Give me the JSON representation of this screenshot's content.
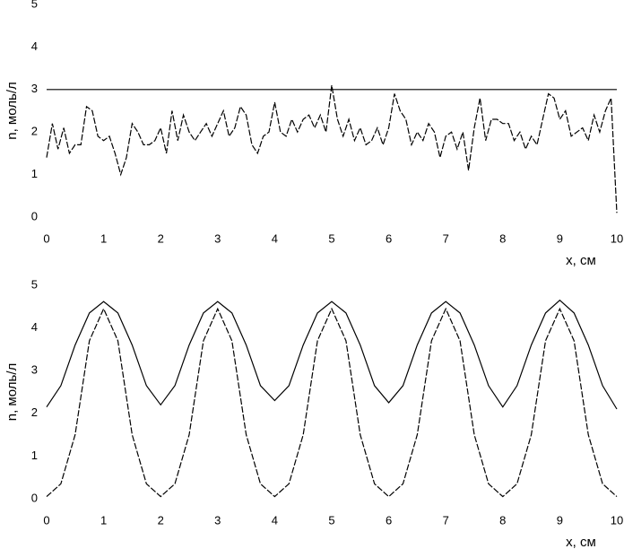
{
  "chart_data": [
    {
      "type": "line",
      "xlabel": "x, см",
      "ylabel": "n, моль/л",
      "xlim": [
        0,
        10
      ],
      "ylim": [
        0,
        5
      ],
      "xticks": [
        0,
        1,
        2,
        3,
        4,
        5,
        6,
        7,
        8,
        9,
        10
      ],
      "yticks": [
        0,
        1,
        2,
        3,
        4,
        5
      ],
      "series": [
        {
          "color": "#000000",
          "dashed": true,
          "x": [
            0,
            0.1,
            0.2,
            0.3,
            0.4,
            0.5,
            0.6,
            0.7,
            0.8,
            0.9,
            1,
            1.1,
            1.2,
            1.3,
            1.4,
            1.5,
            1.6,
            1.7,
            1.8,
            1.9,
            2,
            2.1,
            2.2,
            2.3,
            2.4,
            2.5,
            2.6,
            2.7,
            2.8,
            2.9,
            3,
            3.1,
            3.2,
            3.3,
            3.4,
            3.5,
            3.6,
            3.7,
            3.8,
            3.9,
            4,
            4.1,
            4.2,
            4.3,
            4.4,
            4.5,
            4.6,
            4.7,
            4.8,
            4.9,
            5,
            5.1,
            5.2,
            5.3,
            5.4,
            5.5,
            5.6,
            5.7,
            5.8,
            5.9,
            6,
            6.1,
            6.2,
            6.3,
            6.4,
            6.5,
            6.6,
            6.7,
            6.8,
            6.9,
            7,
            7.1,
            7.2,
            7.3,
            7.4,
            7.5,
            7.6,
            7.7,
            7.8,
            7.9,
            8,
            8.1,
            8.2,
            8.3,
            8.4,
            8.5,
            8.6,
            8.7,
            8.8,
            8.9,
            9,
            9.1,
            9.2,
            9.3,
            9.4,
            9.5,
            9.6,
            9.7,
            9.8,
            9.9,
            10
          ],
          "values": [
            1.4,
            2.2,
            1.6,
            2.1,
            1.5,
            1.7,
            1.7,
            2.6,
            2.5,
            1.9,
            1.8,
            1.9,
            1.5,
            1.0,
            1.4,
            2.2,
            2.0,
            1.7,
            1.7,
            1.8,
            2.1,
            1.5,
            2.5,
            1.8,
            2.4,
            2.0,
            1.8,
            2.0,
            2.2,
            1.9,
            2.2,
            2.5,
            1.9,
            2.1,
            2.6,
            2.4,
            1.7,
            1.5,
            1.9,
            2.0,
            2.7,
            2.0,
            1.9,
            2.3,
            2.0,
            2.3,
            2.4,
            2.1,
            2.4,
            2.0,
            3.1,
            2.3,
            1.9,
            2.3,
            1.8,
            2.1,
            1.7,
            1.8,
            2.1,
            1.7,
            2.1,
            2.9,
            2.5,
            2.3,
            1.7,
            2.0,
            1.8,
            2.2,
            2.0,
            1.4,
            1.9,
            2.0,
            1.6,
            2.0,
            1.1,
            2.1,
            2.8,
            1.8,
            2.3,
            2.3,
            2.2,
            2.2,
            1.8,
            2.0,
            1.6,
            1.9,
            1.7,
            2.3,
            2.9,
            2.8,
            2.3,
            2.5,
            1.9,
            2.0,
            2.1,
            1.8,
            2.4,
            2.0,
            2.5,
            2.8,
            0.1
          ]
        },
        {
          "color": "#000000",
          "dashed": false,
          "x": [
            0,
            10
          ],
          "values": [
            3,
            3
          ]
        }
      ]
    },
    {
      "type": "line",
      "xlabel": "x, см",
      "ylabel": "n, моль/л",
      "xlim": [
        0,
        10
      ],
      "ylim": [
        0,
        5
      ],
      "xticks": [
        0,
        1,
        2,
        3,
        4,
        5,
        6,
        7,
        8,
        9,
        10
      ],
      "yticks": [
        0,
        1,
        2,
        3,
        4,
        5
      ],
      "series": [
        {
          "color": "#000000",
          "dashed": false,
          "x": [
            0,
            0.25,
            0.5,
            0.75,
            1,
            1.25,
            1.5,
            1.75,
            2,
            2.25,
            2.5,
            2.75,
            3,
            3.25,
            3.5,
            3.75,
            4,
            4.25,
            4.5,
            4.75,
            5,
            5.25,
            5.5,
            5.75,
            6,
            6.25,
            6.5,
            6.75,
            7,
            7.25,
            7.5,
            7.75,
            8,
            8.25,
            8.5,
            8.75,
            9,
            9.25,
            9.5,
            9.75,
            10
          ],
          "values": [
            2.15,
            2.65,
            3.6,
            4.35,
            4.62,
            4.35,
            3.6,
            2.65,
            2.2,
            2.65,
            3.6,
            4.35,
            4.62,
            4.35,
            3.6,
            2.65,
            2.3,
            2.65,
            3.6,
            4.35,
            4.62,
            4.35,
            3.6,
            2.65,
            2.25,
            2.65,
            3.6,
            4.35,
            4.62,
            4.35,
            3.6,
            2.65,
            2.15,
            2.65,
            3.6,
            4.35,
            4.65,
            4.35,
            3.6,
            2.65,
            2.1
          ]
        },
        {
          "color": "#000000",
          "dashed": true,
          "x": [
            0,
            0.25,
            0.5,
            0.75,
            1,
            1.25,
            1.5,
            1.75,
            2,
            2.25,
            2.5,
            2.75,
            3,
            3.25,
            3.5,
            3.75,
            4,
            4.25,
            4.5,
            4.75,
            5,
            5.25,
            5.5,
            5.75,
            6,
            6.25,
            6.5,
            6.75,
            7,
            7.25,
            7.5,
            7.75,
            8,
            8.25,
            8.5,
            8.75,
            9,
            9.25,
            9.5,
            9.75,
            10
          ],
          "values": [
            0.05,
            0.35,
            1.5,
            3.7,
            4.45,
            3.7,
            1.5,
            0.35,
            0.05,
            0.35,
            1.5,
            3.7,
            4.45,
            3.7,
            1.5,
            0.35,
            0.05,
            0.35,
            1.5,
            3.7,
            4.45,
            3.7,
            1.5,
            0.35,
            0.05,
            0.35,
            1.5,
            3.7,
            4.45,
            3.7,
            1.5,
            0.35,
            0.05,
            0.35,
            1.5,
            3.7,
            4.45,
            3.7,
            1.5,
            0.35,
            0.05
          ]
        }
      ]
    }
  ]
}
